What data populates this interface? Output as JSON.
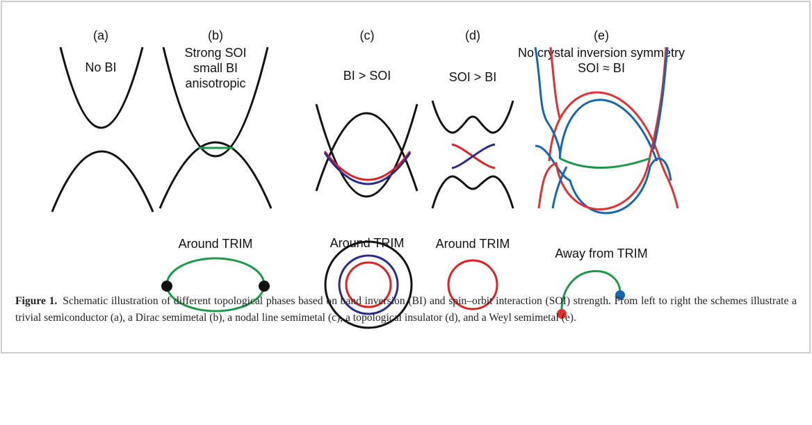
{
  "panels": [
    {
      "label": "(a)",
      "lines": [
        "No BI"
      ]
    },
    {
      "label": "(b)",
      "lines": [
        "Strong SOI",
        "small BI",
        "anisotropic"
      ],
      "bottom": "Around TRIM"
    },
    {
      "label": "(c)",
      "lines": [
        "BI > SOI"
      ],
      "bottom": "Around TRIM"
    },
    {
      "label": "(d)",
      "lines": [
        "SOI > BI"
      ],
      "bottom": "Around TRIM"
    },
    {
      "label": "(e)",
      "lines": [
        "No crystal inversion symmetry",
        "SOI ≈ BI"
      ],
      "bottom": "Away from TRIM"
    }
  ],
  "caption": {
    "label": "Figure 1.",
    "text": "Schematic illustration of different topological phases based on band inversion (BI) and spin–orbit interaction (SOI) strength. From left to right the schemes illustrate a trivial semiconductor (a), a Dirac semimetal (b), a nodal line semimetal (c), a topological insulator (d), and a Weyl semimetal (e)."
  }
}
